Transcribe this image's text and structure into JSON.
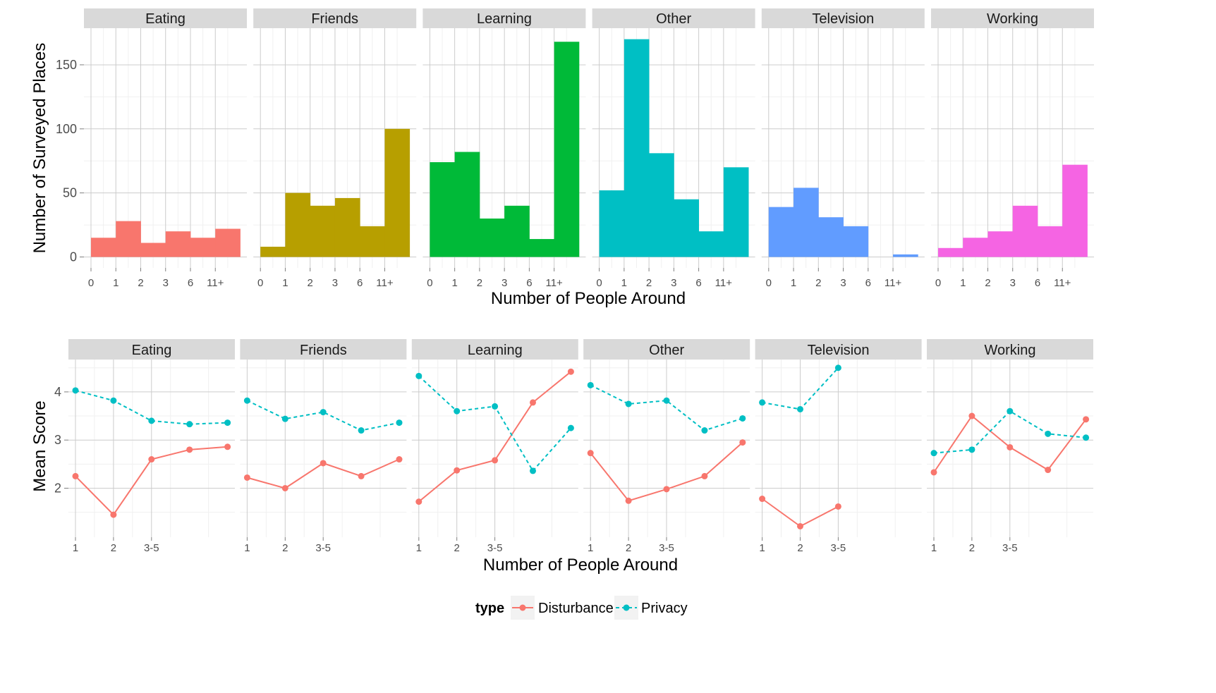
{
  "colors": {
    "disturbance": "#F8766D",
    "privacy": "#00BFC4",
    "strip_bg": "#D9D9D9",
    "grid_major": "#CCCCCC",
    "grid_minor": "#F0F0F0"
  },
  "chart_data": [
    {
      "type": "bar",
      "panel_layout": "facets-1x6",
      "facets": [
        "Eating",
        "Friends",
        "Learning",
        "Other",
        "Television",
        "Working"
      ],
      "facet_colors": [
        "#F8766D",
        "#B79F00",
        "#00BA38",
        "#00BFC4",
        "#619CFF",
        "#F564E3"
      ],
      "x_tick_labels": [
        "0",
        "1",
        "2",
        "3",
        "6",
        "11+"
      ],
      "bins": 6,
      "values": [
        [
          15,
          28,
          11,
          20,
          15,
          22
        ],
        [
          8,
          50,
          40,
          46,
          24,
          100
        ],
        [
          74,
          82,
          30,
          40,
          14,
          168
        ],
        [
          52,
          170,
          81,
          45,
          20,
          70
        ],
        [
          39,
          54,
          31,
          24,
          0,
          2
        ],
        [
          7,
          15,
          20,
          40,
          24,
          72
        ]
      ],
      "ylim": [
        0,
        175
      ],
      "y_ticks": [
        0,
        50,
        100,
        150
      ],
      "xlabel": "Number of People Around",
      "ylabel": "Number of Surveyed Places",
      "grid": true
    },
    {
      "type": "line",
      "panel_layout": "facets-1x6",
      "facets": [
        "Eating",
        "Friends",
        "Learning",
        "Other",
        "Television",
        "Working"
      ],
      "x_tick_labels": [
        "1",
        "2",
        "3-5"
      ],
      "points_per_series": 5,
      "series": [
        {
          "name": "Disturbance",
          "style": "solid",
          "values": [
            [
              2.25,
              1.45,
              2.6,
              2.8,
              2.86
            ],
            [
              2.22,
              2.0,
              2.52,
              2.25,
              2.6
            ],
            [
              1.72,
              2.37,
              2.58,
              3.78,
              4.42
            ],
            [
              2.73,
              1.74,
              1.98,
              2.25,
              2.95
            ],
            [
              1.78,
              1.21,
              1.62,
              null,
              null
            ],
            [
              2.33,
              3.5,
              2.85,
              2.38,
              3.43
            ]
          ]
        },
        {
          "name": "Privacy",
          "style": "dashed",
          "values": [
            [
              4.03,
              3.82,
              3.4,
              3.33,
              3.36
            ],
            [
              3.82,
              3.44,
              3.58,
              3.2,
              3.36
            ],
            [
              4.33,
              3.6,
              3.7,
              2.36,
              3.25
            ],
            [
              4.14,
              3.75,
              3.82,
              3.2,
              3.45
            ],
            [
              3.78,
              3.64,
              4.5,
              null,
              null
            ],
            [
              2.73,
              2.8,
              3.6,
              3.13,
              3.05
            ]
          ]
        }
      ],
      "ylim": [
        1.0,
        4.65
      ],
      "y_ticks": [
        2,
        3,
        4
      ],
      "xlabel": "Number of People Around",
      "ylabel": "Mean Score",
      "legend": {
        "title": "type",
        "position": "bottom",
        "entries": [
          "Disturbance",
          "Privacy"
        ]
      },
      "grid": true
    }
  ]
}
